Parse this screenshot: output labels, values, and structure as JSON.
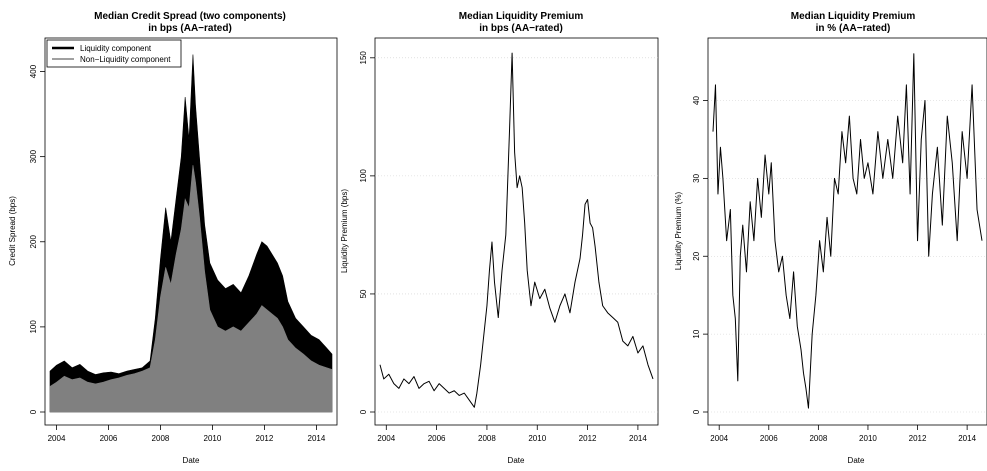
{
  "chart_data": [
    {
      "type": "area",
      "title": "Median Credit Spread (two components)",
      "subtitle": "in bps (AA−rated)",
      "xlabel": "Date",
      "ylabel": "Credit Spread (bps)",
      "xlim": [
        2003.75,
        2014.6
      ],
      "ylim": [
        0,
        430
      ],
      "xticks": [
        "2004",
        "2006",
        "2008",
        "2010",
        "2012",
        "2014"
      ],
      "yticks": [
        "0",
        "100",
        "200",
        "300",
        "400"
      ],
      "legend_position": "top-left",
      "grid": false,
      "series": [
        {
          "name": "Liquidity component",
          "color": "#000000",
          "x": [
            "2003.75",
            "2004.0",
            "2004.3",
            "2004.6",
            "2004.9",
            "2005.2",
            "2005.5",
            "2005.8",
            "2006.1",
            "2006.4",
            "2006.7",
            "2007.0",
            "2007.3",
            "2007.6",
            "2007.8",
            "2008.0",
            "2008.2",
            "2008.4",
            "2008.6",
            "2008.8",
            "2008.95",
            "2009.1",
            "2009.25",
            "2009.35",
            "2009.5",
            "2009.7",
            "2009.9",
            "2010.2",
            "2010.5",
            "2010.8",
            "2011.1",
            "2011.4",
            "2011.7",
            "2011.9",
            "2012.1",
            "2012.3",
            "2012.5",
            "2012.7",
            "2012.9",
            "2013.2",
            "2013.5",
            "2013.8",
            "2014.1",
            "2014.4",
            "2014.6"
          ],
          "values": [
            48,
            55,
            60,
            52,
            56,
            48,
            44,
            46,
            47,
            45,
            48,
            50,
            52,
            60,
            110,
            180,
            240,
            200,
            250,
            300,
            370,
            320,
            420,
            360,
            300,
            220,
            175,
            155,
            145,
            150,
            140,
            160,
            185,
            200,
            195,
            185,
            175,
            160,
            130,
            110,
            100,
            90,
            85,
            75,
            68
          ]
        },
        {
          "name": "Non−Liquidity component",
          "color": "#808080",
          "x": [
            "2003.75",
            "2004.0",
            "2004.3",
            "2004.6",
            "2004.9",
            "2005.2",
            "2005.5",
            "2005.8",
            "2006.1",
            "2006.4",
            "2006.7",
            "2007.0",
            "2007.3",
            "2007.6",
            "2007.8",
            "2008.0",
            "2008.2",
            "2008.4",
            "2008.6",
            "2008.8",
            "2008.95",
            "2009.1",
            "2009.25",
            "2009.35",
            "2009.5",
            "2009.7",
            "2009.9",
            "2010.2",
            "2010.5",
            "2010.8",
            "2011.1",
            "2011.4",
            "2011.7",
            "2011.9",
            "2012.1",
            "2012.3",
            "2012.5",
            "2012.7",
            "2012.9",
            "2013.2",
            "2013.5",
            "2013.8",
            "2014.1",
            "2014.4",
            "2014.6"
          ],
          "values": [
            30,
            35,
            42,
            38,
            40,
            35,
            33,
            35,
            38,
            40,
            43,
            45,
            48,
            52,
            85,
            135,
            170,
            150,
            185,
            215,
            250,
            240,
            290,
            270,
            230,
            165,
            120,
            100,
            95,
            100,
            95,
            105,
            115,
            125,
            120,
            115,
            110,
            100,
            85,
            75,
            68,
            60,
            55,
            52,
            50
          ]
        }
      ]
    },
    {
      "type": "line",
      "title": "Median Liquidity Premium",
      "subtitle": "in bps (AA−rated)",
      "xlabel": "Date",
      "ylabel": "Liquidity Premium (bps)",
      "xlim": [
        2003.75,
        2014.6
      ],
      "ylim": [
        0,
        155
      ],
      "xticks": [
        "2004",
        "2006",
        "2008",
        "2010",
        "2012",
        "2014"
      ],
      "yticks": [
        "0",
        "50",
        "100",
        "150"
      ],
      "grid": true,
      "series": [
        {
          "color": "#000000",
          "x": [
            "2003.75",
            "2003.9",
            "2004.1",
            "2004.3",
            "2004.5",
            "2004.7",
            "2004.9",
            "2005.1",
            "2005.3",
            "2005.5",
            "2005.7",
            "2005.9",
            "2006.1",
            "2006.3",
            "2006.5",
            "2006.7",
            "2006.9",
            "2007.1",
            "2007.3",
            "2007.5",
            "2007.6",
            "2007.75",
            "2007.9",
            "2008.0",
            "2008.1",
            "2008.2",
            "2008.3",
            "2008.45",
            "2008.6",
            "2008.75",
            "2008.9",
            "2009.0",
            "2009.1",
            "2009.2",
            "2009.3",
            "2009.4",
            "2009.5",
            "2009.6",
            "2009.75",
            "2009.9",
            "2010.1",
            "2010.3",
            "2010.5",
            "2010.7",
            "2010.9",
            "2011.1",
            "2011.3",
            "2011.5",
            "2011.7",
            "2011.8",
            "2011.9",
            "2012.0",
            "2012.1",
            "2012.2",
            "2012.3",
            "2012.45",
            "2012.6",
            "2012.8",
            "2013.0",
            "2013.2",
            "2013.4",
            "2013.6",
            "2013.8",
            "2014.0",
            "2014.2",
            "2014.4",
            "2014.6"
          ],
          "values": [
            20,
            14,
            16,
            12,
            10,
            14,
            12,
            15,
            10,
            12,
            13,
            9,
            12,
            10,
            8,
            9,
            7,
            8,
            5,
            2,
            8,
            20,
            35,
            45,
            60,
            72,
            55,
            40,
            60,
            75,
            120,
            152,
            110,
            95,
            100,
            95,
            80,
            60,
            45,
            55,
            48,
            52,
            44,
            38,
            45,
            50,
            42,
            55,
            65,
            75,
            88,
            90,
            80,
            78,
            70,
            55,
            45,
            42,
            40,
            38,
            30,
            28,
            32,
            25,
            28,
            20,
            14
          ]
        }
      ]
    },
    {
      "type": "line",
      "title": "Median Liquidity Premium",
      "subtitle": "in % (AA−rated)",
      "xlabel": "Date",
      "ylabel": "Liquidity Premium (%)",
      "xlim": [
        2003.75,
        2014.6
      ],
      "ylim": [
        0,
        47
      ],
      "xticks": [
        "2004",
        "2006",
        "2008",
        "2010",
        "2012",
        "2014"
      ],
      "yticks": [
        "0",
        "10",
        "20",
        "30",
        "40"
      ],
      "grid": true,
      "series": [
        {
          "color": "#000000",
          "x": [
            "2003.75",
            "2003.85",
            "2003.95",
            "2004.05",
            "2004.15",
            "2004.3",
            "2004.45",
            "2004.55",
            "2004.65",
            "2004.75",
            "2004.85",
            "2004.95",
            "2005.1",
            "2005.25",
            "2005.4",
            "2005.55",
            "2005.7",
            "2005.85",
            "2006.0",
            "2006.1",
            "2006.25",
            "2006.4",
            "2006.55",
            "2006.7",
            "2006.85",
            "2007.0",
            "2007.15",
            "2007.3",
            "2007.4",
            "2007.5",
            "2007.6",
            "2007.75",
            "2007.9",
            "2008.05",
            "2008.2",
            "2008.35",
            "2008.5",
            "2008.65",
            "2008.8",
            "2008.95",
            "2009.1",
            "2009.25",
            "2009.4",
            "2009.55",
            "2009.7",
            "2009.85",
            "2010.0",
            "2010.2",
            "2010.4",
            "2010.6",
            "2010.8",
            "2011.0",
            "2011.2",
            "2011.4",
            "2011.55",
            "2011.7",
            "2011.85",
            "2012.0",
            "2012.15",
            "2012.3",
            "2012.45",
            "2012.6",
            "2012.8",
            "2013.0",
            "2013.2",
            "2013.4",
            "2013.6",
            "2013.8",
            "2014.0",
            "2014.2",
            "2014.4",
            "2014.6"
          ],
          "values": [
            36,
            42,
            28,
            34,
            30,
            22,
            26,
            15,
            12,
            4,
            20,
            24,
            18,
            27,
            22,
            30,
            25,
            33,
            28,
            32,
            22,
            18,
            20,
            15,
            12,
            18,
            11,
            8,
            5,
            3,
            0.5,
            10,
            15,
            22,
            18,
            25,
            20,
            30,
            28,
            36,
            32,
            38,
            30,
            28,
            35,
            30,
            32,
            28,
            36,
            30,
            35,
            30,
            38,
            32,
            42,
            28,
            46,
            22,
            35,
            40,
            20,
            28,
            34,
            24,
            38,
            32,
            22,
            36,
            30,
            42,
            26,
            22
          ]
        }
      ]
    }
  ]
}
